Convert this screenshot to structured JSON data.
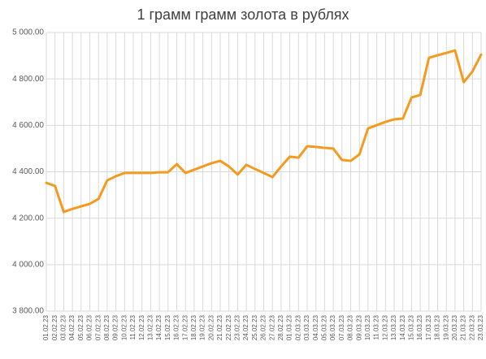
{
  "chart_data": {
    "type": "line",
    "title": "1 грамм грамм золота в рублях",
    "categories": [
      "01.02.23",
      "02.02.23",
      "03.02.23",
      "04.02.23",
      "05.02.23",
      "06.02.23",
      "07.02.23",
      "08.02.23",
      "09.02.23",
      "10.02.23",
      "11.02.23",
      "12.02.23",
      "13.02.23",
      "14.02.23",
      "15.02.23",
      "16.02.23",
      "17.02.23",
      "18.02.23",
      "19.02.23",
      "20.02.23",
      "21.02.23",
      "22.02.23",
      "23.02.23",
      "24.02.23",
      "25.02.23",
      "26.02.23",
      "27.02.23",
      "28.02.23",
      "01.03.23",
      "02.03.23",
      "03.03.23",
      "04.03.23",
      "05.03.23",
      "06.03.23",
      "07.03.23",
      "08.03.23",
      "09.03.23",
      "10.03.23",
      "11.03.23",
      "12.03.23",
      "13.03.23",
      "14.03.23",
      "15.03.23",
      "16.03.23",
      "17.03.23",
      "18.03.23",
      "19.03.23",
      "20.03.23",
      "21.03.23",
      "22.03.23",
      "23.03.23"
    ],
    "values": [
      4352,
      4339,
      4227,
      4240,
      4251,
      4262,
      4283,
      4363,
      4381,
      4395,
      4395,
      4395,
      4395,
      4398,
      4398,
      4433,
      4395,
      4409,
      4423,
      4437,
      4447,
      4423,
      4388,
      4430,
      4412,
      4395,
      4377,
      4423,
      4465,
      4461,
      4510,
      4507,
      4503,
      4500,
      4451,
      4447,
      4475,
      4587,
      4601,
      4615,
      4626,
      4629,
      4720,
      4731,
      4891,
      4902,
      4912,
      4923,
      4786,
      4832,
      4905
    ],
    "color": "#f59a1e",
    "ylim": [
      3800,
      5000
    ],
    "yticks": [
      {
        "value": 3800,
        "label": "3 800.00"
      },
      {
        "value": 4000,
        "label": "4 000.00"
      },
      {
        "value": 4200,
        "label": "4 200.00"
      },
      {
        "value": 4400,
        "label": "4 400.00"
      },
      {
        "value": 4600,
        "label": "4 600.00"
      },
      {
        "value": 4800,
        "label": "4 800.00"
      },
      {
        "value": 5000,
        "label": "5 000.00"
      }
    ],
    "grid": true
  }
}
